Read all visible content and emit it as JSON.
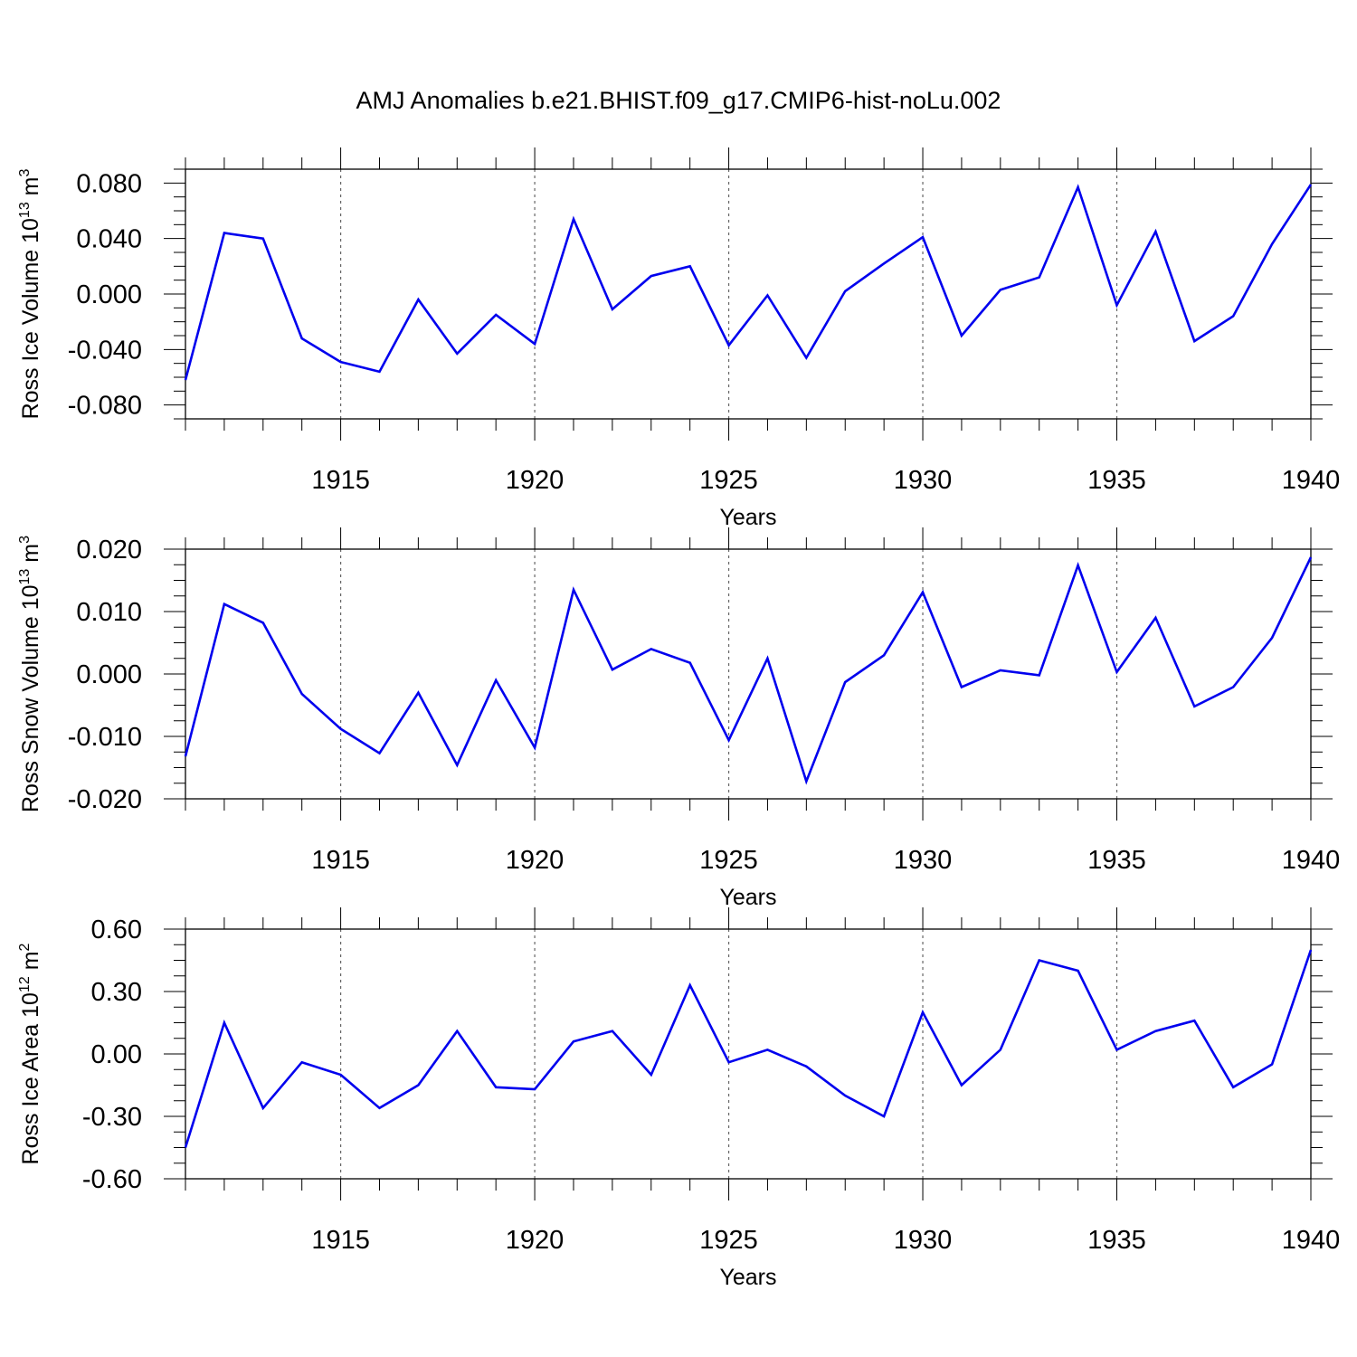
{
  "title": "AMJ Anomalies b.e21.BHIST.f09_g17.CMIP6-hist-noLu.002",
  "series_color": "#0000ee",
  "chart_data": [
    {
      "type": "line",
      "ylabel_main": "Ross Ice Volume 10",
      "ylabel_exp": "13",
      "ylabel_unit": " m",
      "ylabel_unit_exp": "3",
      "xlabel": "Years",
      "xlim": [
        1911,
        1940
      ],
      "ylim": [
        -0.09,
        0.09
      ],
      "yticks": [
        -0.08,
        -0.04,
        0.0,
        0.04,
        0.08
      ],
      "ytick_labels": [
        "-0.080",
        "-0.040",
        "0.000",
        "0.040",
        "0.080"
      ],
      "xticks": [
        1915,
        1920,
        1925,
        1930,
        1935,
        1940
      ],
      "xtick_labels": [
        "1915",
        "1920",
        "1925",
        "1930",
        "1935",
        "1940"
      ],
      "grid": "dotted vertical at major x ticks",
      "x": [
        1911,
        1912,
        1913,
        1914,
        1915,
        1916,
        1917,
        1918,
        1919,
        1920,
        1921,
        1922,
        1923,
        1924,
        1925,
        1926,
        1927,
        1928,
        1929,
        1930,
        1931,
        1932,
        1933,
        1934,
        1935,
        1936,
        1937,
        1938,
        1939,
        1940
      ],
      "values": [
        -0.062,
        0.044,
        0.04,
        -0.032,
        -0.049,
        -0.056,
        -0.004,
        -0.043,
        -0.015,
        -0.036,
        0.054,
        -0.011,
        0.013,
        0.02,
        -0.037,
        -0.001,
        -0.046,
        0.002,
        0.022,
        0.041,
        -0.03,
        0.003,
        0.012,
        0.077,
        -0.008,
        0.045,
        -0.034,
        -0.016,
        0.036,
        0.079
      ]
    },
    {
      "type": "line",
      "ylabel_main": "Ross Snow Volume 10",
      "ylabel_exp": "13",
      "ylabel_unit": " m",
      "ylabel_unit_exp": "3",
      "xlabel": "Years",
      "xlim": [
        1911,
        1940
      ],
      "ylim": [
        -0.02,
        0.02
      ],
      "yticks": [
        -0.02,
        -0.01,
        0.0,
        0.01,
        0.02
      ],
      "ytick_labels": [
        "-0.020",
        "-0.010",
        "0.000",
        "0.010",
        "0.020"
      ],
      "xticks": [
        1915,
        1920,
        1925,
        1930,
        1935,
        1940
      ],
      "xtick_labels": [
        "1915",
        "1920",
        "1925",
        "1930",
        "1935",
        "1940"
      ],
      "grid": "dotted vertical at major x ticks",
      "x": [
        1911,
        1912,
        1913,
        1914,
        1915,
        1916,
        1917,
        1918,
        1919,
        1920,
        1921,
        1922,
        1923,
        1924,
        1925,
        1926,
        1927,
        1928,
        1929,
        1930,
        1931,
        1932,
        1933,
        1934,
        1935,
        1936,
        1937,
        1938,
        1939,
        1940
      ],
      "values": [
        -0.0132,
        0.0112,
        0.0082,
        -0.0032,
        -0.0088,
        -0.0127,
        -0.003,
        -0.0146,
        -0.001,
        -0.0118,
        0.0135,
        0.0007,
        0.004,
        0.0018,
        -0.0106,
        0.0025,
        -0.0172,
        -0.0013,
        0.003,
        0.0131,
        -0.0021,
        0.0006,
        -0.0002,
        0.0174,
        0.0003,
        0.009,
        -0.0052,
        -0.0021,
        0.0058,
        0.0187
      ]
    },
    {
      "type": "line",
      "ylabel_main": "Ross Ice Area 10",
      "ylabel_exp": "12",
      "ylabel_unit": " m",
      "ylabel_unit_exp": "2",
      "xlabel": "Years",
      "xlim": [
        1911,
        1940
      ],
      "ylim": [
        -0.6,
        0.6
      ],
      "yticks": [
        -0.6,
        -0.3,
        0.0,
        0.3,
        0.6
      ],
      "ytick_labels": [
        "-0.60",
        "-0.30",
        "0.00",
        "0.30",
        "0.60"
      ],
      "xticks": [
        1915,
        1920,
        1925,
        1930,
        1935,
        1940
      ],
      "xtick_labels": [
        "1915",
        "1920",
        "1925",
        "1930",
        "1935",
        "1940"
      ],
      "grid": "dotted vertical at major x ticks",
      "x": [
        1911,
        1912,
        1913,
        1914,
        1915,
        1916,
        1917,
        1918,
        1919,
        1920,
        1921,
        1922,
        1923,
        1924,
        1925,
        1926,
        1927,
        1928,
        1929,
        1930,
        1931,
        1932,
        1933,
        1934,
        1935,
        1936,
        1937,
        1938,
        1939,
        1940
      ],
      "values": [
        -0.45,
        0.15,
        -0.26,
        -0.04,
        -0.1,
        -0.26,
        -0.15,
        0.11,
        -0.16,
        -0.17,
        0.06,
        0.11,
        -0.1,
        0.33,
        -0.04,
        0.02,
        -0.06,
        -0.2,
        -0.3,
        0.2,
        -0.15,
        0.02,
        0.45,
        0.4,
        0.02,
        0.11,
        0.16,
        -0.16,
        -0.05,
        0.5
      ]
    }
  ]
}
